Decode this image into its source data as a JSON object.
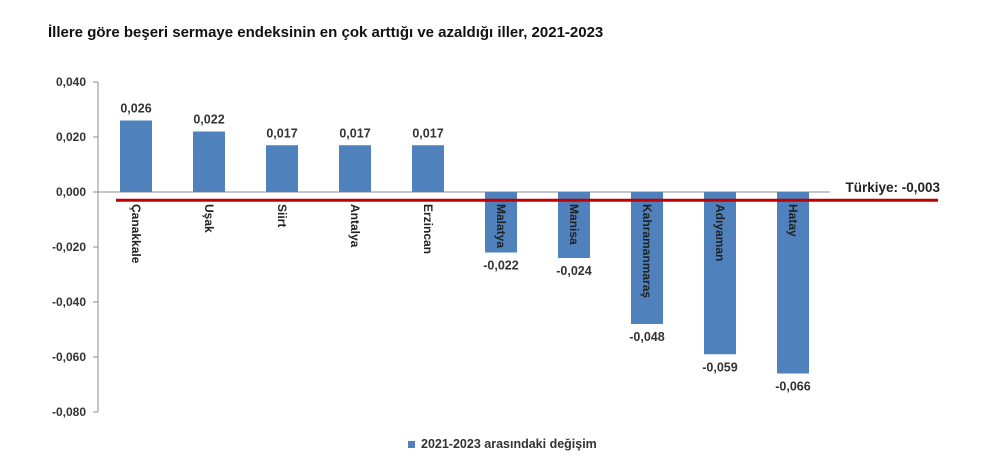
{
  "title": "İllere göre beşeri sermaye endeksinin en çok arttığı ve azaldığı iller, 2021-2023",
  "chart_data": {
    "type": "bar",
    "categories": [
      "Çanakkale",
      "Uşak",
      "Siirt",
      "Antalya",
      "Erzincan",
      "Malatya",
      "Manisa",
      "Kahramanmaraş",
      "Adıyaman",
      "Hatay"
    ],
    "series": [
      {
        "name": "2021-2023 arasındaki değişim",
        "values": [
          0.026,
          0.022,
          0.017,
          0.017,
          0.017,
          -0.022,
          -0.024,
          -0.048,
          -0.059,
          -0.066
        ],
        "labels": [
          "0,026",
          "0,022",
          "0,017",
          "0,017",
          "0,017",
          "-0,022",
          "-0,024",
          "-0,048",
          "-0,059",
          "-0,066"
        ],
        "color": "#4f81bd"
      }
    ],
    "ylim": [
      -0.08,
      0.04
    ],
    "yticks": [
      0.04,
      0.02,
      0.0,
      -0.02,
      -0.04,
      -0.06,
      -0.08
    ],
    "ytick_labels": [
      "0,040",
      "0,020",
      "0,000",
      "-0,020",
      "-0,040",
      "-0,060",
      "-0,080"
    ],
    "reference_line": {
      "value": -0.003,
      "label": "Türkiye: -0,003",
      "color": "#c00000"
    },
    "legend_position": "bottom",
    "grid": false
  }
}
